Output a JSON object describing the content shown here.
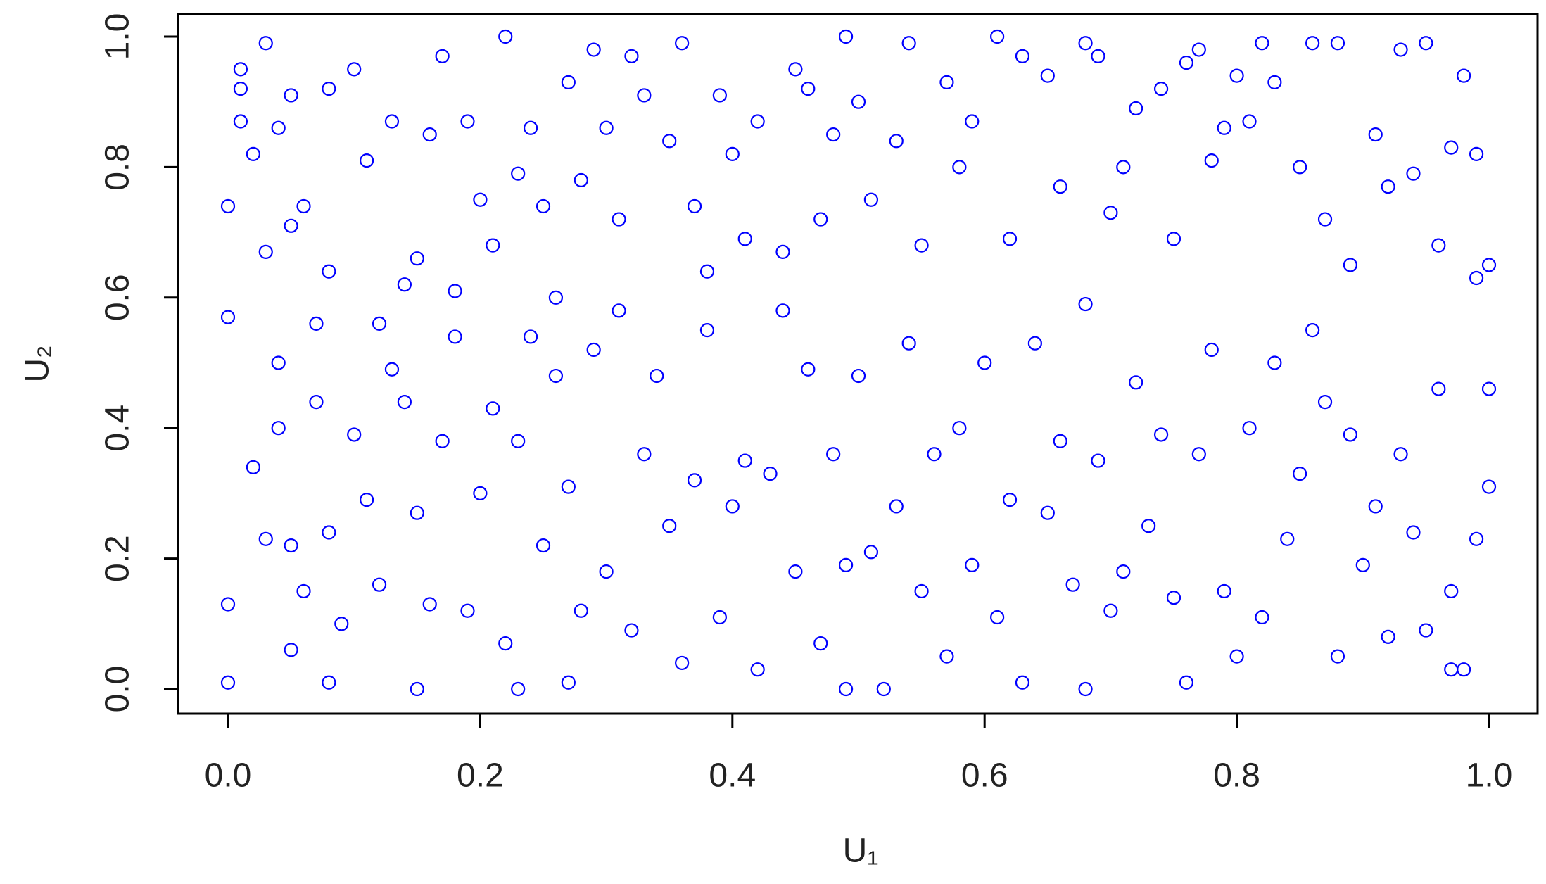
{
  "chart_data": {
    "type": "scatter",
    "xlabel": "U₁",
    "ylabel": "U₂",
    "color": "#0000ff",
    "x": [
      0.0,
      0.0,
      0.01,
      0.01,
      0.01,
      0.02,
      0.03,
      0.03,
      0.04,
      0.04,
      0.05,
      0.05,
      0.06,
      0.07,
      0.08,
      0.08,
      0.1,
      0.11,
      0.12,
      0.13,
      0.14,
      0.15,
      0.16,
      0.17,
      0.18,
      0.19,
      0.2,
      0.21,
      0.22,
      0.23,
      0.24,
      0.25,
      0.26,
      0.27,
      0.28,
      0.29,
      0.3,
      0.31,
      0.32,
      0.33,
      0.35,
      0.36,
      0.37,
      0.38,
      0.39,
      0.4,
      0.41,
      0.42,
      0.44,
      0.45,
      0.46,
      0.47,
      0.48,
      0.49,
      0.5,
      0.51,
      0.53,
      0.54,
      0.55,
      0.57,
      0.58,
      0.59,
      0.61,
      0.62,
      0.63,
      0.65,
      0.66,
      0.68,
      0.69,
      0.7,
      0.71,
      0.72,
      0.74,
      0.75,
      0.76,
      0.77,
      0.78,
      0.79,
      0.8,
      0.81,
      0.82,
      0.83,
      0.85,
      0.86,
      0.87,
      0.88,
      0.89,
      0.91,
      0.92,
      0.93,
      0.94,
      0.95,
      0.96,
      0.97,
      0.98,
      0.99,
      0.99,
      1.0,
      1.0,
      0.02,
      0.03,
      0.04,
      0.05,
      0.06,
      0.07,
      0.08,
      0.09,
      0.1,
      0.11,
      0.12,
      0.13,
      0.14,
      0.15,
      0.16,
      0.17,
      0.18,
      0.19,
      0.2,
      0.21,
      0.22,
      0.23,
      0.24,
      0.25,
      0.26,
      0.27,
      0.28,
      0.29,
      0.3,
      0.31,
      0.32,
      0.33,
      0.34,
      0.35,
      0.36,
      0.37,
      0.38,
      0.39,
      0.4,
      0.41,
      0.42,
      0.43,
      0.44,
      0.45,
      0.46,
      0.47,
      0.48,
      0.49,
      0.5,
      0.51,
      0.52,
      0.53,
      0.54,
      0.55,
      0.56,
      0.57,
      0.58,
      0.59,
      0.6,
      0.61,
      0.62,
      0.63,
      0.64,
      0.65,
      0.66,
      0.67,
      0.68,
      0.69,
      0.7,
      0.71,
      0.72,
      0.73,
      0.74,
      0.75,
      0.76,
      0.77,
      0.78,
      0.79,
      0.8,
      0.81,
      0.82,
      0.83,
      0.84,
      0.85,
      0.86,
      0.87,
      0.88,
      0.89,
      0.9,
      0.91,
      0.92,
      0.93,
      0.94,
      0.95,
      0.96,
      0.97,
      0.98,
      0.99,
      1.0,
      0.0,
      0.0,
      0.05,
      0.08,
      0.15,
      0.23,
      0.27,
      0.49,
      0.68,
      0.97
    ],
    "values": [
      0.57,
      0.74,
      0.92,
      0.95,
      0.87,
      0.82,
      0.99,
      0.67,
      0.5,
      0.86,
      0.91,
      0.71,
      0.74,
      0.56,
      0.92,
      0.64,
      0.95,
      0.81,
      0.56,
      0.87,
      0.62,
      0.66,
      0.85,
      0.97,
      0.61,
      0.87,
      0.75,
      0.68,
      1.0,
      0.79,
      0.86,
      0.74,
      0.6,
      0.93,
      0.78,
      0.98,
      0.86,
      0.72,
      0.97,
      0.91,
      0.84,
      0.99,
      0.74,
      0.64,
      0.91,
      0.82,
      0.69,
      0.87,
      0.67,
      0.95,
      0.92,
      0.72,
      0.85,
      1.0,
      0.9,
      0.75,
      0.84,
      0.99,
      0.68,
      0.93,
      0.8,
      0.87,
      1.0,
      0.69,
      0.97,
      0.94,
      0.77,
      0.99,
      0.97,
      0.73,
      0.8,
      0.89,
      0.92,
      0.69,
      0.96,
      0.98,
      0.81,
      0.86,
      0.94,
      0.87,
      0.99,
      0.93,
      0.8,
      0.99,
      0.72,
      0.99,
      0.65,
      0.85,
      0.77,
      0.98,
      0.79,
      0.99,
      0.68,
      0.83,
      0.94,
      0.82,
      0.63,
      0.65,
      0.46,
      0.34,
      0.23,
      0.4,
      0.22,
      0.15,
      0.44,
      0.24,
      0.1,
      0.39,
      0.29,
      0.16,
      0.49,
      0.44,
      0.27,
      0.13,
      0.38,
      0.54,
      0.12,
      0.3,
      0.43,
      0.07,
      0.38,
      0.54,
      0.22,
      0.48,
      0.31,
      0.12,
      0.52,
      0.18,
      0.58,
      0.09,
      0.36,
      0.48,
      0.25,
      0.04,
      0.32,
      0.55,
      0.11,
      0.28,
      0.35,
      0.03,
      0.33,
      0.58,
      0.18,
      0.49,
      0.07,
      0.36,
      0.19,
      0.48,
      0.21,
      0.0,
      0.28,
      0.53,
      0.15,
      0.36,
      0.05,
      0.4,
      0.19,
      0.5,
      0.11,
      0.29,
      0.01,
      0.53,
      0.27,
      0.38,
      0.16,
      0.59,
      0.35,
      0.12,
      0.18,
      0.47,
      0.25,
      0.39,
      0.14,
      0.01,
      0.36,
      0.52,
      0.15,
      0.05,
      0.4,
      0.11,
      0.5,
      0.23,
      0.33,
      0.55,
      0.44,
      0.05,
      0.39,
      0.19,
      0.28,
      0.08,
      0.36,
      0.24,
      0.09,
      0.46,
      0.15,
      0.03,
      0.23,
      0.31,
      0.01,
      0.13,
      0.06,
      0.01,
      0.0,
      0.0,
      0.01,
      0.0,
      0.0,
      0.03
    ],
    "xlim": [
      0.0,
      1.0
    ],
    "ylim": [
      0.0,
      1.0
    ],
    "xticks": [
      {
        "value": 0,
        "label": "0.0"
      },
      {
        "value": 0.2,
        "label": "0.2"
      },
      {
        "value": 0.4,
        "label": "0.4"
      },
      {
        "value": 0.6,
        "label": "0.6"
      },
      {
        "value": 0.8,
        "label": "0.8"
      },
      {
        "value": 1,
        "label": "1.0"
      }
    ],
    "yticks": [
      {
        "value": 0,
        "label": "0.0"
      },
      {
        "value": 0.2,
        "label": "0.2"
      },
      {
        "value": 0.4,
        "label": "0.4"
      },
      {
        "value": 0.6,
        "label": "0.6"
      },
      {
        "value": 0.8,
        "label": "0.8"
      },
      {
        "value": 1,
        "label": "1.0"
      }
    ]
  }
}
